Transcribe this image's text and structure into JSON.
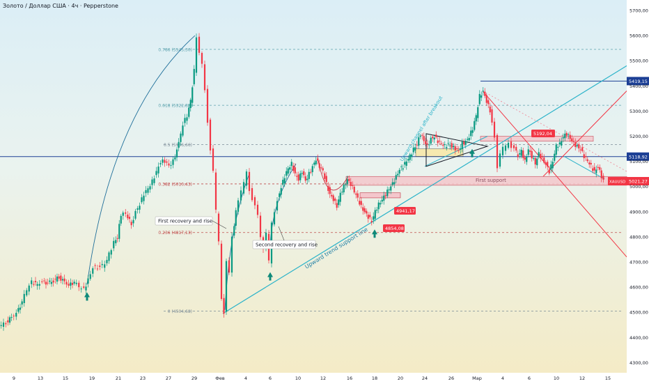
{
  "header": {
    "title": "Золото / Доллар США · 4ч · Pepperstone"
  },
  "colors": {
    "up": "#089981",
    "down": "#f23645",
    "fib": "#2a8fa0",
    "trend": "#2bb3c9",
    "red_line": "#f23645",
    "blue_line": "#1c3f95",
    "support_zone": "#f4c7cc",
    "price_label": "#f23645",
    "hline_label": "#1c3f95"
  },
  "price_labels": {
    "last_symbol": "XAUUSD",
    "last_value": "5021,27",
    "hline_value": "5118,92",
    "top_line_value": "5419,15"
  },
  "annotations": {
    "first_recovery": "First recovery and rise",
    "second_recovery": "Second recovery and rise",
    "trend_support": "Upward trend support line",
    "channel_after_breakout": "Upward channel after breakout",
    "first_support": "First support",
    "box_5192": "5192,04",
    "box_4941": "4941,17",
    "box_4854": "4854,08"
  },
  "chart_data": {
    "type": "candlestick",
    "title": "Золото / Доллар США · 4ч · Pepperstone",
    "symbol": "XAUUSD",
    "x_ticks": [
      "9",
      "13",
      "15",
      "19",
      "21",
      "23",
      "27",
      "29",
      "Фев",
      "4",
      "6",
      "10",
      "12",
      "16",
      "18",
      "20",
      "24",
      "26",
      "Мар",
      "4",
      "6",
      "10",
      "12",
      "15"
    ],
    "y_ticks": [
      "4300,00",
      "4400,00",
      "4500,00",
      "4600,00",
      "4700,00",
      "4800,00",
      "4900,00",
      "5000,00",
      "5100,00",
      "5200,00",
      "5300,00",
      "5400,00",
      "5500,00",
      "5600,00",
      "5700,00"
    ],
    "ylim": [
      4275,
      5745
    ],
    "fib_levels": [
      {
        "label": "0.786 (5545,30)",
        "value": 5545.3
      },
      {
        "label": "0.618 (5322,88)",
        "value": 5322.88
      },
      {
        "label": "0.5 (5166,66)",
        "value": 5166.66
      },
      {
        "label": "0.382 (5010,43)",
        "value": 5010.43
      },
      {
        "label": "0.236 (4817,13)",
        "value": 4817.13
      },
      {
        "label": "0 (4504,68)",
        "value": 4504.68
      }
    ],
    "last_price": 5021.27,
    "horizontal_line": 5118.92,
    "top_line": 5419.15,
    "price_path": [
      [
        0,
        4440
      ],
      [
        10,
        4460
      ],
      [
        18,
        4480
      ],
      [
        25,
        4500
      ],
      [
        33,
        4540
      ],
      [
        40,
        4590
      ],
      [
        47,
        4620
      ],
      [
        55,
        4610
      ],
      [
        62,
        4625
      ],
      [
        70,
        4615
      ],
      [
        78,
        4625
      ],
      [
        86,
        4640
      ],
      [
        94,
        4620
      ],
      [
        100,
        4610
      ],
      [
        108,
        4620
      ],
      [
        115,
        4600
      ],
      [
        122,
        4590
      ],
      [
        128,
        4630
      ],
      [
        135,
        4680
      ],
      [
        145,
        4680
      ],
      [
        152,
        4690
      ],
      [
        158,
        4730
      ],
      [
        165,
        4780
      ],
      [
        170,
        4800
      ],
      [
        175,
        4890
      ],
      [
        182,
        4890
      ],
      [
        190,
        4850
      ],
      [
        196,
        4900
      ],
      [
        202,
        4930
      ],
      [
        208,
        4970
      ],
      [
        214,
        4990
      ],
      [
        220,
        5020
      ],
      [
        226,
        5060
      ],
      [
        232,
        5100
      ],
      [
        238,
        5100
      ],
      [
        244,
        5080
      ],
      [
        250,
        5100
      ],
      [
        258,
        5170
      ],
      [
        264,
        5250
      ],
      [
        270,
        5280
      ],
      [
        275,
        5340
      ],
      [
        280,
        5460
      ],
      [
        284,
        5600
      ],
      [
        288,
        5530
      ],
      [
        292,
        5480
      ],
      [
        296,
        5380
      ],
      [
        300,
        5260
      ],
      [
        304,
        5150
      ],
      [
        308,
        5060
      ],
      [
        312,
        4900
      ],
      [
        316,
        4780
      ],
      [
        320,
        4560
      ],
      [
        323,
        4500
      ],
      [
        327,
        4700
      ],
      [
        331,
        4650
      ],
      [
        335,
        4800
      ],
      [
        340,
        4900
      ],
      [
        344,
        4950
      ],
      [
        348,
        4980
      ],
      [
        352,
        5010
      ],
      [
        356,
        5060
      ],
      [
        360,
        4990
      ],
      [
        364,
        4950
      ],
      [
        368,
        4920
      ],
      [
        372,
        4880
      ],
      [
        376,
        4800
      ],
      [
        380,
        4760
      ],
      [
        384,
        4820
      ],
      [
        388,
        4700
      ],
      [
        392,
        4850
      ],
      [
        396,
        4900
      ],
      [
        400,
        4950
      ],
      [
        405,
        5000
      ],
      [
        410,
        5040
      ],
      [
        415,
        5070
      ],
      [
        420,
        5090
      ],
      [
        425,
        5050
      ],
      [
        430,
        5030
      ],
      [
        435,
        5060
      ],
      [
        440,
        5020
      ],
      [
        445,
        5050
      ],
      [
        450,
        5080
      ],
      [
        455,
        5110
      ],
      [
        460,
        5080
      ],
      [
        465,
        5060
      ],
      [
        470,
        5010
      ],
      [
        475,
        4970
      ],
      [
        480,
        4950
      ],
      [
        485,
        4920
      ],
      [
        490,
        4970
      ],
      [
        495,
        5000
      ],
      [
        500,
        5030
      ],
      [
        505,
        5010
      ],
      [
        510,
        4980
      ],
      [
        515,
        4950
      ],
      [
        520,
        4920
      ],
      [
        525,
        4900
      ],
      [
        530,
        4880
      ],
      [
        535,
        4860
      ],
      [
        540,
        4900
      ],
      [
        545,
        4930
      ],
      [
        550,
        4950
      ],
      [
        555,
        4970
      ],
      [
        560,
        4990
      ],
      [
        565,
        5010
      ],
      [
        570,
        5040
      ],
      [
        575,
        5070
      ],
      [
        580,
        5080
      ],
      [
        585,
        5100
      ],
      [
        590,
        5120
      ],
      [
        595,
        5150
      ],
      [
        600,
        5170
      ],
      [
        605,
        5210
      ],
      [
        610,
        5180
      ],
      [
        615,
        5160
      ],
      [
        620,
        5190
      ],
      [
        625,
        5200
      ],
      [
        630,
        5180
      ],
      [
        635,
        5170
      ],
      [
        640,
        5160
      ],
      [
        645,
        5170
      ],
      [
        650,
        5160
      ],
      [
        655,
        5150
      ],
      [
        660,
        5140
      ],
      [
        665,
        5170
      ],
      [
        670,
        5180
      ],
      [
        675,
        5200
      ],
      [
        680,
        5230
      ],
      [
        685,
        5280
      ],
      [
        690,
        5360
      ],
      [
        695,
        5380
      ],
      [
        700,
        5340
      ],
      [
        705,
        5300
      ],
      [
        708,
        5250
      ],
      [
        712,
        5200
      ],
      [
        716,
        5080
      ],
      [
        720,
        5130
      ],
      [
        724,
        5150
      ],
      [
        728,
        5160
      ],
      [
        732,
        5180
      ],
      [
        736,
        5160
      ],
      [
        740,
        5150
      ],
      [
        745,
        5120
      ],
      [
        750,
        5140
      ],
      [
        755,
        5100
      ],
      [
        760,
        5150
      ],
      [
        765,
        5120
      ],
      [
        770,
        5090
      ],
      [
        775,
        5130
      ],
      [
        780,
        5110
      ],
      [
        785,
        5090
      ],
      [
        790,
        5060
      ],
      [
        795,
        5100
      ],
      [
        800,
        5160
      ],
      [
        805,
        5170
      ],
      [
        810,
        5200
      ],
      [
        815,
        5210
      ],
      [
        820,
        5190
      ],
      [
        825,
        5170
      ],
      [
        830,
        5160
      ],
      [
        835,
        5150
      ],
      [
        840,
        5120
      ],
      [
        845,
        5100
      ],
      [
        850,
        5080
      ],
      [
        855,
        5060
      ],
      [
        860,
        5080
      ],
      [
        865,
        5040
      ],
      [
        868,
        5021
      ]
    ]
  }
}
